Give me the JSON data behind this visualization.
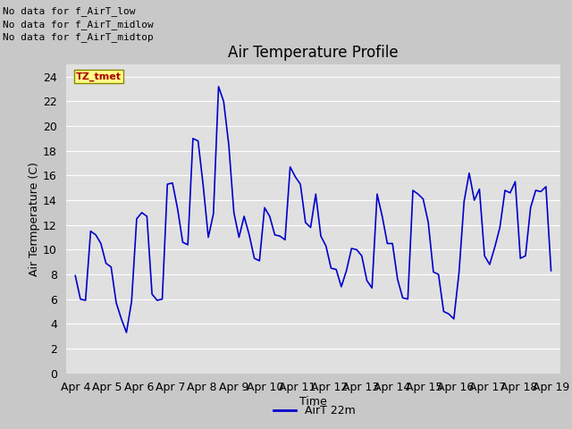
{
  "title": "Air Temperature Profile",
  "xlabel": "Time",
  "ylabel": "Air Termperature (C)",
  "ylim": [
    0,
    25
  ],
  "yticks": [
    0,
    2,
    4,
    6,
    8,
    10,
    12,
    14,
    16,
    18,
    20,
    22,
    24
  ],
  "line_color": "#0000cc",
  "line_width": 1.2,
  "bg_color": "#c8c8c8",
  "plot_bg_color": "#e0e0e0",
  "legend_label": "AirT 22m",
  "annotations": [
    "No data for f_AirT_low",
    "No data for f_AirT_midlow",
    "No data for f_AirT_midtop"
  ],
  "tz_label": "TZ_tmet",
  "x_labels": [
    "Apr 4",
    "Apr 5",
    "Apr 6",
    "Apr 7",
    "Apr 8",
    "Apr 9",
    "Apr 10",
    "Apr 11",
    "Apr 12",
    "Apr 13",
    "Apr 14",
    "Apr 15",
    "Apr 16",
    "Apr 17",
    "Apr 18",
    "Apr 19"
  ],
  "y_values": [
    7.9,
    6.0,
    5.9,
    11.5,
    11.2,
    10.5,
    8.9,
    8.6,
    5.7,
    4.4,
    3.3,
    5.8,
    12.5,
    13.0,
    12.7,
    6.4,
    5.9,
    6.0,
    15.3,
    15.4,
    13.3,
    10.6,
    10.4,
    19.0,
    18.8,
    15.2,
    11.0,
    12.9,
    23.2,
    22.0,
    18.5,
    13.0,
    11.0,
    12.7,
    11.2,
    9.3,
    9.1,
    13.4,
    12.7,
    11.2,
    11.1,
    10.8,
    16.7,
    15.9,
    15.3,
    12.2,
    11.8,
    14.5,
    11.1,
    10.3,
    8.5,
    8.4,
    7.0,
    8.3,
    10.1,
    10.0,
    9.5,
    7.5,
    6.9,
    14.5,
    12.7,
    10.5,
    10.5,
    7.6,
    6.1,
    6.0,
    14.8,
    14.5,
    14.1,
    12.2,
    8.2,
    8.0,
    5.0,
    4.8,
    4.4,
    8.1,
    13.9,
    16.2,
    14.0,
    14.9,
    9.5,
    8.8,
    10.2,
    11.8,
    14.8,
    14.6,
    15.5,
    9.3,
    9.5,
    13.4,
    14.8,
    14.7,
    15.1,
    8.3
  ],
  "title_fontsize": 12,
  "axis_label_fontsize": 9,
  "tick_fontsize": 9,
  "annot_fontsize": 8
}
